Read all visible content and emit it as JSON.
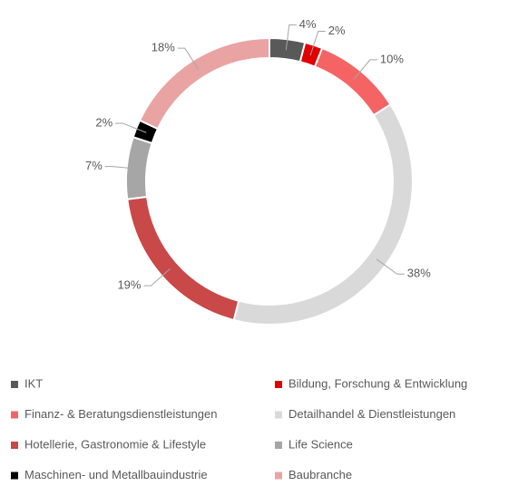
{
  "chart_data": {
    "type": "donut",
    "categories": [
      "IKT",
      "Bildung, Forschung & Entwicklung",
      "Finanz- & Beratungsdienstleistungen",
      "Detailhandel & Dienstleistungen",
      "Hotellerie, Gastronomie & Lifestyle",
      "Life Science",
      "Maschinen- und Metallbauindustrie",
      "Baubranche"
    ],
    "values": [
      4,
      2,
      10,
      38,
      19,
      7,
      2,
      18
    ],
    "value_labels": [
      "4%",
      "2%",
      "10%",
      "38%",
      "19%",
      "7%",
      "2%",
      "18%"
    ],
    "colors": [
      "#595959",
      "#e00000",
      "#f46464",
      "#d9d9d9",
      "#c94848",
      "#a6a6a6",
      "#000000",
      "#e9a3a3"
    ],
    "legend": "bottom"
  }
}
